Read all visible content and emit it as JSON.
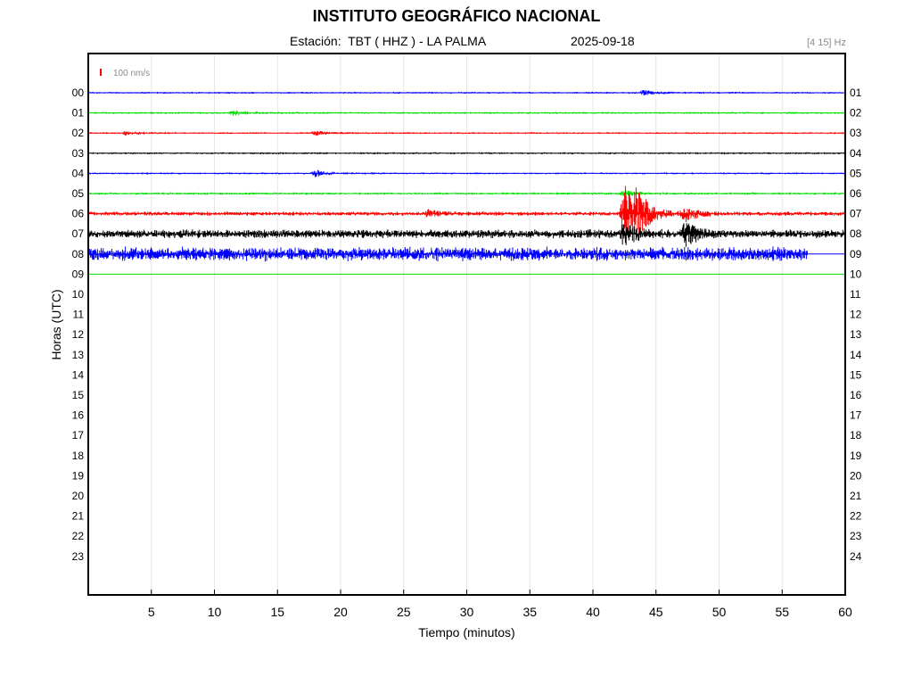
{
  "header": {
    "title": "INSTITUTO GEOGRÁFICO NACIONAL",
    "station_label": "Estación:  TBT ( HHZ ) - LA PALMA",
    "date": "2025-09-18",
    "frequency_band": "[4 15] Hz"
  },
  "chart_data": {
    "type": "line",
    "title": "INSTITUTO GEOGRÁFICO NACIONAL",
    "xlabel": "Tiempo (minutos)",
    "ylabel": "Horas (UTC)",
    "xlim": [
      0,
      60
    ],
    "x_ticks": [
      5,
      10,
      15,
      20,
      25,
      30,
      35,
      40,
      45,
      50,
      55,
      60
    ],
    "grid": "vertical-x",
    "scale_bar": {
      "label": "100 nm/s",
      "color": "#ff0000"
    },
    "left_hour_labels": [
      "00",
      "01",
      "02",
      "03",
      "04",
      "05",
      "06",
      "07",
      "08",
      "09",
      "10",
      "11",
      "12",
      "13",
      "14",
      "15",
      "16",
      "17",
      "18",
      "19",
      "20",
      "21",
      "22",
      "23"
    ],
    "right_hour_labels": [
      "01",
      "02",
      "03",
      "04",
      "05",
      "06",
      "07",
      "08",
      "09",
      "10",
      "11",
      "12",
      "13",
      "14",
      "15",
      "16",
      "17",
      "18",
      "19",
      "20",
      "21",
      "22",
      "23",
      "24"
    ],
    "trace_colors": [
      "#0000ff",
      "#00dd00",
      "#ff0000",
      "#000000"
    ],
    "series": [
      {
        "hour": 0,
        "end_minute": 60,
        "base_amp": 1.2,
        "events": [
          {
            "t": 44,
            "amp": 2.5
          }
        ]
      },
      {
        "hour": 1,
        "end_minute": 60,
        "base_amp": 1.3,
        "events": [
          {
            "t": 11.5,
            "amp": 3
          }
        ]
      },
      {
        "hour": 2,
        "end_minute": 60,
        "base_amp": 1.2,
        "events": [
          {
            "t": 3,
            "amp": 2.5
          },
          {
            "t": 18,
            "amp": 2.5
          }
        ]
      },
      {
        "hour": 3,
        "end_minute": 60,
        "base_amp": 1.3,
        "events": []
      },
      {
        "hour": 4,
        "end_minute": 60,
        "base_amp": 1.2,
        "events": [
          {
            "t": 18,
            "amp": 3.5
          }
        ]
      },
      {
        "hour": 5,
        "end_minute": 60,
        "base_amp": 1.5,
        "events": [
          {
            "t": 42.5,
            "amp": 3
          }
        ]
      },
      {
        "hour": 6,
        "end_minute": 60,
        "base_amp": 2.6,
        "events": [
          {
            "t": 27,
            "amp": 4
          },
          {
            "t": 42.5,
            "amp": 32
          },
          {
            "t": 43.5,
            "amp": 22
          },
          {
            "t": 47.3,
            "amp": 9
          }
        ]
      },
      {
        "hour": 7,
        "end_minute": 60,
        "base_amp": 5.2,
        "events": [
          {
            "t": 42.5,
            "amp": 13
          },
          {
            "t": 47.3,
            "amp": 12
          }
        ]
      },
      {
        "hour": 8,
        "end_minute": 57,
        "base_amp": 8.5,
        "events": []
      },
      {
        "hour": 9,
        "end_minute": 60,
        "base_amp": 0,
        "events": []
      }
    ]
  }
}
